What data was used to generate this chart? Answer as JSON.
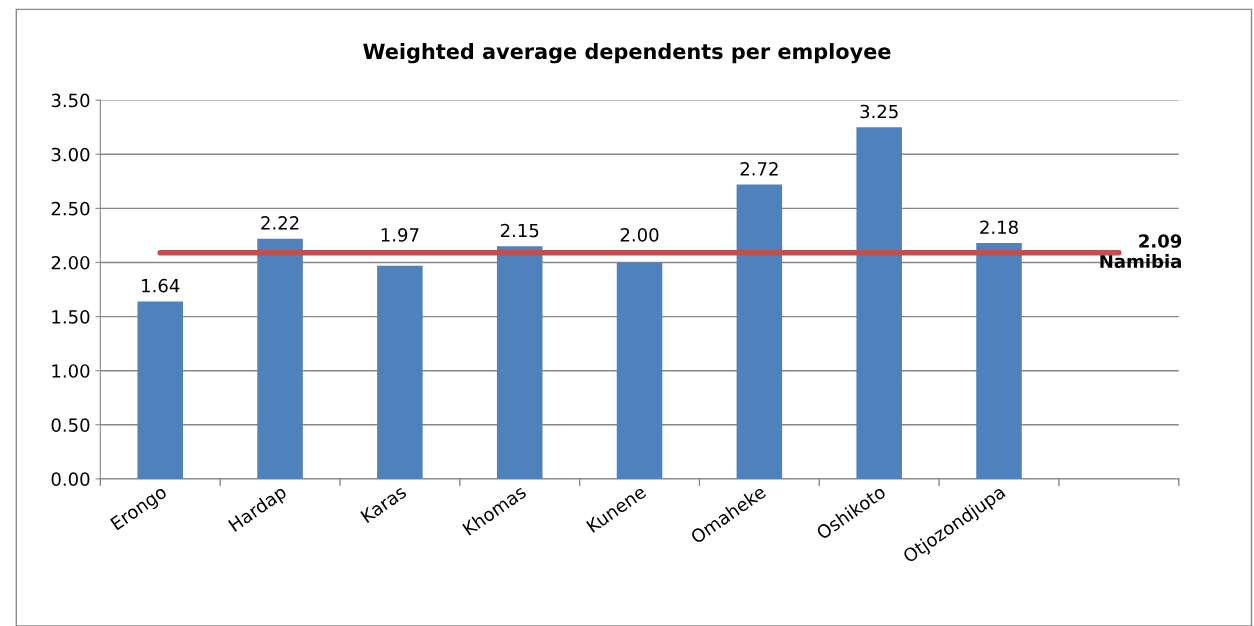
{
  "chart_data": {
    "type": "bar",
    "title": "Weighted average dependents per employee",
    "categories": [
      "Erongo",
      "Hardap",
      "Karas",
      "Khomas",
      "Kunene",
      "Omaheke",
      "Oshikoto",
      "Otjozondjupa",
      null
    ],
    "values": [
      1.64,
      2.22,
      1.97,
      2.15,
      2.0,
      2.72,
      3.25,
      2.18,
      null
    ],
    "value_labels": [
      "1.64",
      "2.22",
      "1.97",
      "2.15",
      "2.00",
      "2.72",
      "3.25",
      "2.18",
      null
    ],
    "color": "#4f81bd",
    "ylim": [
      0,
      3.5
    ],
    "yticks": [
      {
        "value": 0,
        "label": "0.00"
      },
      {
        "value": 0.5,
        "label": "0.50"
      },
      {
        "value": 1,
        "label": "1.00"
      },
      {
        "value": 1.5,
        "label": "1.50"
      },
      {
        "value": 2,
        "label": "2.00"
      },
      {
        "value": 2.5,
        "label": "2.50"
      },
      {
        "value": 3,
        "label": "3.00"
      },
      {
        "value": 3.5,
        "label": "3.50"
      }
    ],
    "grid": "y",
    "ref_lines": [
      {
        "axis": "y",
        "value": 2.09,
        "label": "2.09\nNamibia",
        "color": "#c0504d",
        "line_style": "solid"
      }
    ]
  }
}
